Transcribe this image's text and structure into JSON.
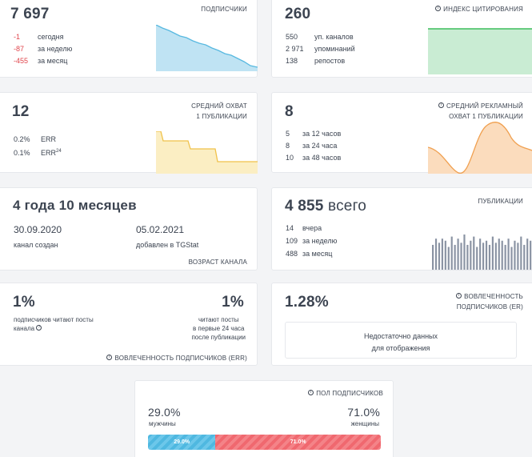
{
  "subscribers": {
    "count": "7 697",
    "label": "ПОДПИСЧИКИ",
    "rows": [
      {
        "value": "-1",
        "text": "сегодня"
      },
      {
        "value": "-87",
        "text": "за неделю"
      },
      {
        "value": "-455",
        "text": "за месяц"
      }
    ],
    "chart_color": "#58b9e0"
  },
  "citation": {
    "count": "260",
    "label": "ИНДЕКС ЦИТИРОВАНИЯ",
    "icon": "info-icon",
    "rows": [
      {
        "value": "550",
        "text": "уп. каналов"
      },
      {
        "value": "2 971",
        "text": "упоминаний"
      },
      {
        "value": "138",
        "text": "репостов"
      }
    ],
    "chart_color": "#3dbd5d"
  },
  "reach": {
    "count": "12",
    "label_line1": "СРЕДНИЙ ОХВАТ",
    "label_line2": "1 ПУБЛИКАЦИИ",
    "rows": [
      {
        "value": "0.2%",
        "text": "ERR"
      },
      {
        "value": "0.1%",
        "text": "ERR",
        "sub": "24"
      }
    ],
    "chart_color": "#f0c24a"
  },
  "ad_reach": {
    "count": "8",
    "label_line1": "СРЕДНИЙ РЕКЛАМНЫЙ",
    "label_line2": "ОХВАТ 1 ПУБЛИКАЦИИ",
    "icon": "info-icon",
    "rows": [
      {
        "value": "5",
        "text": "за 12 часов"
      },
      {
        "value": "8",
        "text": "за 24 часа"
      },
      {
        "value": "10",
        "text": "за 48 часов"
      }
    ],
    "chart_color": "#f0a050"
  },
  "age": {
    "title": "4 года 10 месяцев",
    "created_date": "30.09.2020",
    "created_label": "канал создан",
    "added_date": "05.02.2021",
    "added_label": "добавлен в TGStat",
    "label": "ВОЗРАСТ КАНАЛА"
  },
  "publications": {
    "count": "4 855",
    "suffix": "всего",
    "label": "ПУБЛИКАЦИИ",
    "rows": [
      {
        "value": "14",
        "text": "вчера"
      },
      {
        "value": "109",
        "text": "за неделю"
      },
      {
        "value": "488",
        "text": "за месяц"
      }
    ],
    "bars": [
      12,
      15,
      13,
      15,
      14,
      11,
      16,
      12,
      15,
      13,
      17,
      12,
      14,
      16,
      11,
      15,
      13,
      14,
      12,
      16,
      13,
      15,
      14,
      12,
      15,
      11,
      14,
      13,
      16,
      12,
      15,
      14
    ],
    "chart_color": "#8a93a3"
  },
  "err": {
    "left_value": "1%",
    "left_line1": "подписчиков читают посты",
    "left_line2": "канала",
    "right_value": "1%",
    "right_line1": "читают посты",
    "right_line2": "в первые 24 часа",
    "right_line3": "после публикации",
    "label": "ВОВЛЕЧЕННОСТЬ ПОДПИСЧИКОВ (ERR)",
    "icon": "info-icon"
  },
  "er": {
    "value": "1.28%",
    "label_line1": "ВОВЛЕЧЕННОСТЬ",
    "label_line2": "ПОДПИСЧИКОВ (ER)",
    "icon": "info-icon",
    "empty_line1": "Недостаточно данных",
    "empty_line2": "для отображения"
  },
  "gender": {
    "label": "ПОЛ ПОДПИСЧИКОВ",
    "icon": "info-icon",
    "male_value": "29.0%",
    "male_label": "мужчины",
    "female_value": "71.0%",
    "female_label": "женщины",
    "male_share": 29.0,
    "female_share": 71.0,
    "male_bar_text": "29.0%",
    "female_bar_text": "71.0%"
  }
}
